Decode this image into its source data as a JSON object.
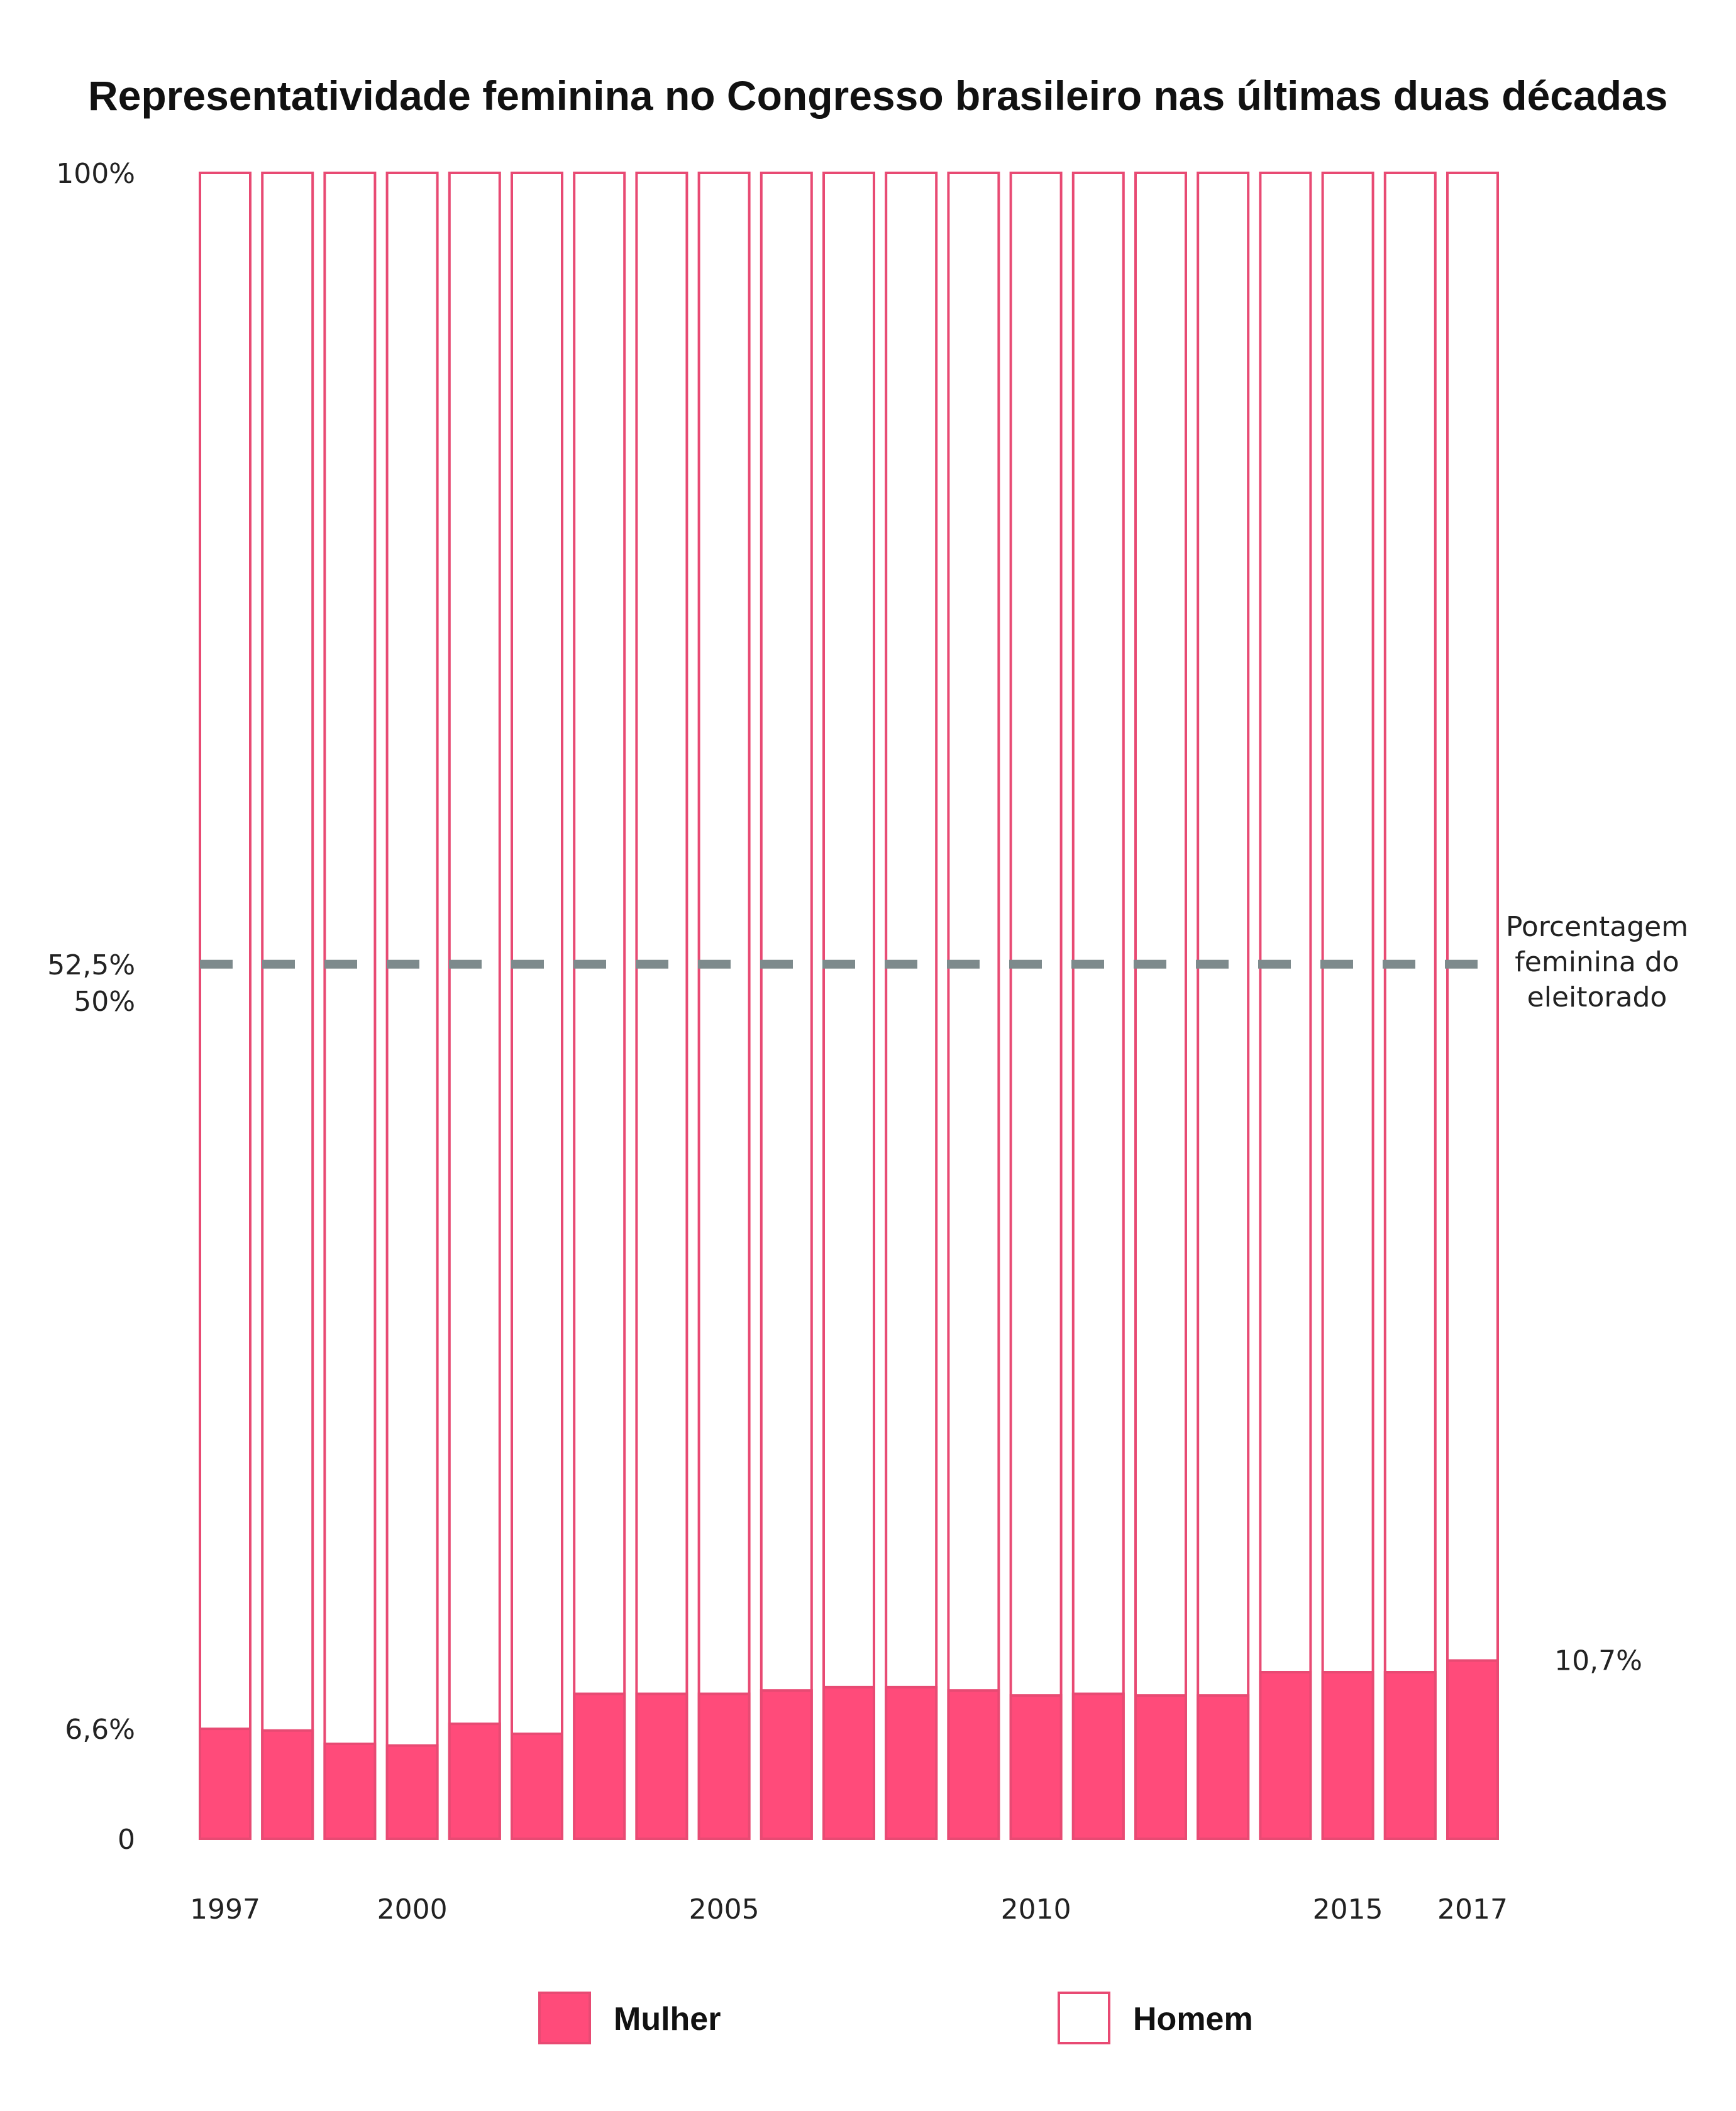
{
  "colors": {
    "mulher": "#ff4b7a",
    "homem": "#ffffff",
    "border": "#e84a73",
    "reference_line": "#7d8a8c",
    "text": "#222222"
  },
  "chart_data": {
    "type": "bar",
    "stacked": true,
    "title": "Representatividade feminina no Congresso brasileiro nas últimas duas décadas",
    "xlabel": "",
    "ylabel": "",
    "ylim": [
      0,
      100
    ],
    "ytick_labels": [
      {
        "value": 100,
        "label": "100%"
      },
      {
        "value": 52.5,
        "label": "52,5%"
      },
      {
        "value": 50,
        "label": "50%"
      },
      {
        "value": 6.6,
        "label": "6,6%"
      },
      {
        "value": 0,
        "label": "0"
      }
    ],
    "categories": [
      "1997",
      "1998",
      "1999",
      "2000",
      "2001",
      "2002",
      "2003",
      "2004",
      "2005",
      "2006",
      "2007",
      "2008",
      "2009",
      "2010",
      "2011",
      "2012",
      "2013",
      "2014",
      "2015",
      "2016",
      "2017"
    ],
    "xtick_labels": [
      {
        "category": "1997",
        "label": "1997"
      },
      {
        "category": "2000",
        "label": "2000"
      },
      {
        "category": "2005",
        "label": "2005"
      },
      {
        "category": "2010",
        "label": "2010"
      },
      {
        "category": "2015",
        "label": "2015"
      },
      {
        "category": "2017",
        "label": "2017"
      }
    ],
    "series": [
      {
        "name": "Mulher",
        "values": [
          6.6,
          6.5,
          5.7,
          5.6,
          6.9,
          6.3,
          8.7,
          8.7,
          8.7,
          8.9,
          9.1,
          9.1,
          8.9,
          8.6,
          8.7,
          8.6,
          8.6,
          10.0,
          10.0,
          10.0,
          10.7
        ]
      },
      {
        "name": "Homem",
        "values": [
          93.4,
          93.5,
          94.3,
          94.4,
          93.1,
          93.7,
          91.3,
          91.3,
          91.3,
          91.1,
          90.9,
          90.9,
          91.1,
          91.4,
          91.3,
          91.4,
          91.4,
          90.0,
          90.0,
          90.0,
          89.3
        ]
      }
    ],
    "reference_line": {
      "value": 52.5,
      "label": [
        "Porcentagem",
        "feminina do",
        "eleitorado"
      ]
    },
    "annotations": [
      {
        "category": "2017",
        "value": 10.7,
        "label": "10,7%"
      }
    ],
    "legend": {
      "position": "bottom",
      "entries": [
        "Mulher",
        "Homem"
      ]
    },
    "grid": false
  }
}
